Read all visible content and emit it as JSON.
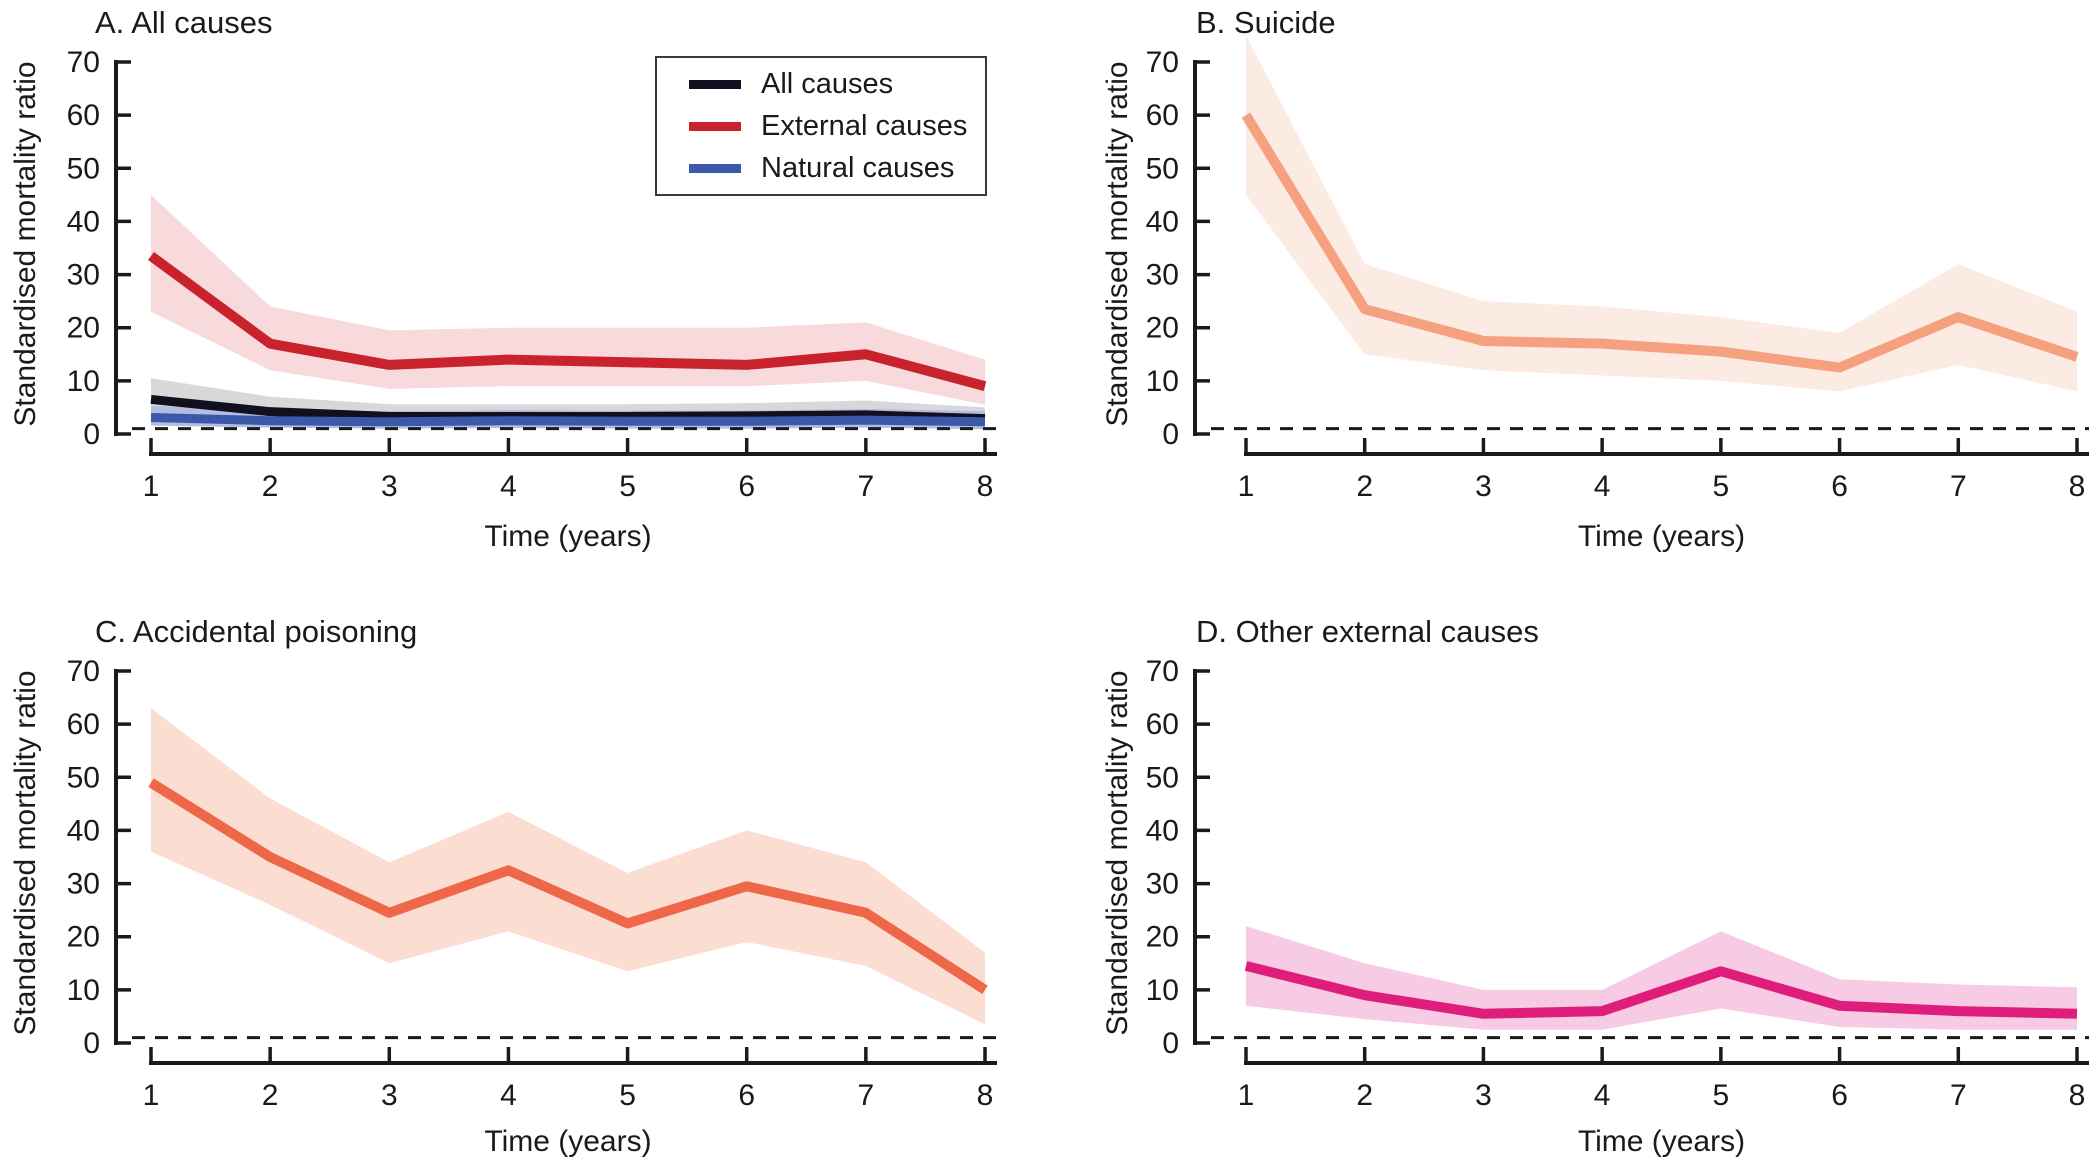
{
  "figure": {
    "y_axis_label": "Standardised mortality ratio",
    "x_axis_label": "Time (years)",
    "reference_line_value": 1
  },
  "legend": {
    "items": [
      {
        "label": "All causes",
        "color": "#10101f"
      },
      {
        "label": "External causes",
        "color": "#c8232c"
      },
      {
        "label": "Natural causes",
        "color": "#3c58a8"
      }
    ]
  },
  "chart_data": [
    {
      "id": "A",
      "type": "line",
      "title": "A. All causes",
      "xlabel": "Time (years)",
      "ylabel": "Standardised mortality ratio",
      "x": [
        1,
        2,
        3,
        4,
        5,
        6,
        7,
        8
      ],
      "x_ticks": [
        "1",
        "2",
        "3",
        "4",
        "5",
        "6",
        "7",
        "8"
      ],
      "y_ticks": [
        0,
        10,
        20,
        30,
        40,
        50,
        60,
        70
      ],
      "ylim": [
        0,
        70
      ],
      "reference_line": 1,
      "grid": false,
      "legend_position": "top-right-inside",
      "series": [
        {
          "name": "All causes",
          "color": "#10101f",
          "band_color": "#d8d8d8",
          "band_opacity": 1,
          "values": [
            6.5,
            4.2,
            3.3,
            3.3,
            3.3,
            3.4,
            3.6,
            2.9
          ],
          "ci_low": [
            4.0,
            2.6,
            2.0,
            2.0,
            2.0,
            2.0,
            2.2,
            1.7
          ],
          "ci_high": [
            10.5,
            7.0,
            5.6,
            5.6,
            5.6,
            5.8,
            6.3,
            5.0
          ]
        },
        {
          "name": "External causes",
          "color": "#c8232c",
          "band_color": "#f5cdd0",
          "band_opacity": 0.75,
          "values": [
            33.5,
            17.0,
            13.0,
            14.0,
            13.5,
            13.0,
            15.0,
            9.0
          ],
          "ci_low": [
            23.0,
            12.0,
            8.5,
            9.0,
            9.0,
            9.0,
            10.0,
            5.5
          ],
          "ci_high": [
            45.0,
            24.0,
            19.5,
            20.0,
            20.0,
            20.0,
            21.0,
            14.0
          ]
        },
        {
          "name": "Natural causes",
          "color": "#3c58a8",
          "band_color": "#b4bce0",
          "band_opacity": 1,
          "values": [
            3.1,
            2.5,
            2.3,
            2.5,
            2.4,
            2.4,
            2.6,
            2.3
          ],
          "ci_low": [
            1.6,
            1.2,
            1.0,
            1.1,
            1.0,
            1.0,
            1.2,
            0.9
          ],
          "ci_high": [
            5.3,
            4.5,
            4.3,
            4.5,
            4.4,
            4.4,
            4.7,
            4.3
          ]
        }
      ]
    },
    {
      "id": "B",
      "type": "line",
      "title": "B. Suicide",
      "xlabel": "Time (years)",
      "ylabel": "Standardised mortality ratio",
      "x": [
        1,
        2,
        3,
        4,
        5,
        6,
        7,
        8
      ],
      "x_ticks": [
        "1",
        "2",
        "3",
        "4",
        "5",
        "6",
        "7",
        "8"
      ],
      "y_ticks": [
        0,
        10,
        20,
        30,
        40,
        50,
        60,
        70
      ],
      "ylim": [
        0,
        70
      ],
      "reference_line": 1,
      "grid": false,
      "series": [
        {
          "name": "Suicide",
          "color": "#f5a17f",
          "band_color": "#fcebe2",
          "band_opacity": 1,
          "values": [
            60.0,
            23.5,
            17.5,
            17.0,
            15.5,
            12.5,
            22.0,
            14.5
          ],
          "ci_low": [
            45.0,
            15.0,
            12.0,
            11.0,
            10.0,
            8.0,
            13.0,
            8.0
          ],
          "ci_high": [
            75.0,
            32.0,
            25.0,
            24.0,
            22.0,
            19.0,
            32.0,
            23.0
          ]
        }
      ]
    },
    {
      "id": "C",
      "type": "line",
      "title": "C. Accidental poisoning",
      "xlabel": "Time (years)",
      "ylabel": "Standardised mortality ratio",
      "x": [
        1,
        2,
        3,
        4,
        5,
        6,
        7,
        8
      ],
      "x_ticks": [
        "1",
        "2",
        "3",
        "4",
        "5",
        "6",
        "7",
        "8"
      ],
      "y_ticks": [
        0,
        10,
        20,
        30,
        40,
        50,
        60,
        70
      ],
      "ylim": [
        0,
        70
      ],
      "reference_line": 1,
      "grid": false,
      "series": [
        {
          "name": "Accidental poisoning",
          "color": "#ef6749",
          "band_color": "#fbddd1",
          "band_opacity": 1,
          "values": [
            49.0,
            35.0,
            24.5,
            32.5,
            22.5,
            29.5,
            24.5,
            10.0
          ],
          "ci_low": [
            36.0,
            26.0,
            15.0,
            21.0,
            13.5,
            19.0,
            14.5,
            3.5
          ],
          "ci_high": [
            63.0,
            46.0,
            34.0,
            43.5,
            32.0,
            40.0,
            34.0,
            17.0
          ]
        }
      ]
    },
    {
      "id": "D",
      "type": "line",
      "title": "D. Other external causes",
      "xlabel": "Time (years)",
      "ylabel": "Standardised mortality ratio",
      "x": [
        1,
        2,
        3,
        4,
        5,
        6,
        7,
        8
      ],
      "x_ticks": [
        "1",
        "2",
        "3",
        "4",
        "5",
        "6",
        "7",
        "8"
      ],
      "y_ticks": [
        0,
        10,
        20,
        30,
        40,
        50,
        60,
        70
      ],
      "ylim": [
        0,
        70
      ],
      "reference_line": 1,
      "grid": false,
      "series": [
        {
          "name": "Other external causes",
          "color": "#df1d7c",
          "band_color": "#f7cbe3",
          "band_opacity": 1,
          "values": [
            14.5,
            9.0,
            5.5,
            6.0,
            13.5,
            7.0,
            6.0,
            5.5
          ],
          "ci_low": [
            7.0,
            4.5,
            2.5,
            2.5,
            6.5,
            3.0,
            2.5,
            2.5
          ],
          "ci_high": [
            22.0,
            15.0,
            10.0,
            10.0,
            21.0,
            12.0,
            11.0,
            10.5
          ]
        }
      ]
    }
  ]
}
